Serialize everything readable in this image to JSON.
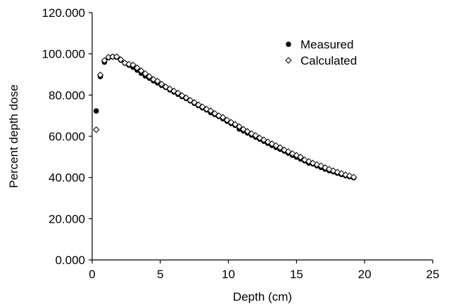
{
  "chart_data": {
    "type": "scatter",
    "xlabel": "Depth (cm)",
    "ylabel": "Percent depth dose",
    "xlim": [
      0,
      25
    ],
    "ylim": [
      0,
      120
    ],
    "xticks": [
      0,
      5,
      10,
      15,
      20,
      25
    ],
    "xtick_labels": [
      "0",
      "5",
      "10",
      "15",
      "20",
      "25"
    ],
    "yticks": [
      0,
      20,
      40,
      60,
      80,
      100,
      120
    ],
    "ytick_labels": [
      "0.000",
      "20.000",
      "40.000",
      "60.000",
      "80.000",
      "100.000",
      "120.000"
    ],
    "grid": false,
    "legend_position": "top-right",
    "series": [
      {
        "name": "Measured",
        "marker": "filled-circle",
        "color": "#000000",
        "points": [
          [
            0.3,
            72.3
          ],
          [
            0.6,
            89.0
          ],
          [
            0.9,
            96.0
          ],
          [
            1.2,
            98.2
          ],
          [
            1.5,
            98.6
          ],
          [
            1.8,
            98.4
          ],
          [
            2.1,
            97.0
          ],
          [
            2.4,
            95.5
          ],
          [
            2.7,
            94.5
          ],
          [
            3.0,
            93.5
          ],
          [
            3.3,
            92.1
          ],
          [
            3.6,
            90.6
          ],
          [
            3.9,
            89.3
          ],
          [
            4.2,
            88.2
          ],
          [
            4.5,
            86.9
          ],
          [
            4.8,
            85.9
          ],
          [
            5.1,
            84.7
          ],
          [
            5.4,
            83.7
          ],
          [
            5.7,
            82.5
          ],
          [
            6.0,
            81.5
          ],
          [
            6.3,
            80.4
          ],
          [
            6.6,
            79.3
          ],
          [
            6.9,
            78.3
          ],
          [
            7.2,
            77.2
          ],
          [
            7.5,
            76.0
          ],
          [
            7.8,
            74.9
          ],
          [
            8.1,
            73.8
          ],
          [
            8.4,
            72.8
          ],
          [
            8.7,
            71.5
          ],
          [
            9.0,
            70.6
          ],
          [
            9.3,
            69.6
          ],
          [
            9.6,
            68.5
          ],
          [
            9.9,
            67.3
          ],
          [
            10.2,
            66.2
          ],
          [
            10.5,
            65.3
          ],
          [
            10.8,
            63.5
          ],
          [
            11.1,
            62.6
          ],
          [
            11.4,
            61.6
          ],
          [
            11.7,
            60.6
          ],
          [
            12.0,
            59.6
          ],
          [
            12.3,
            58.6
          ],
          [
            12.6,
            57.6
          ],
          [
            12.9,
            56.6
          ],
          [
            13.2,
            55.6
          ],
          [
            13.5,
            54.6
          ],
          [
            13.8,
            53.7
          ],
          [
            14.1,
            52.8
          ],
          [
            14.4,
            51.8
          ],
          [
            14.7,
            50.8
          ],
          [
            15.0,
            49.9
          ],
          [
            15.3,
            49.0
          ],
          [
            15.6,
            48.1
          ],
          [
            15.9,
            47.0
          ],
          [
            16.2,
            46.6
          ],
          [
            16.5,
            45.7
          ],
          [
            16.8,
            44.9
          ],
          [
            17.1,
            44.1
          ],
          [
            17.4,
            43.3
          ],
          [
            17.7,
            42.8
          ],
          [
            18.0,
            42.1
          ],
          [
            18.3,
            41.5
          ],
          [
            18.6,
            40.9
          ],
          [
            18.9,
            40.4
          ],
          [
            19.2,
            39.9
          ]
        ]
      },
      {
        "name": "Calculated",
        "marker": "open-diamond",
        "color": "#000000",
        "points": [
          [
            0.3,
            63.2
          ],
          [
            0.6,
            89.8
          ],
          [
            0.9,
            96.8
          ],
          [
            1.2,
            98.4
          ],
          [
            1.5,
            98.6
          ],
          [
            1.8,
            98.6
          ],
          [
            2.1,
            97.2
          ],
          [
            2.4,
            95.6
          ],
          [
            2.7,
            95.0
          ],
          [
            3.0,
            94.6
          ],
          [
            3.3,
            93.2
          ],
          [
            3.6,
            91.8
          ],
          [
            3.9,
            90.4
          ],
          [
            4.2,
            89.0
          ],
          [
            4.5,
            87.6
          ],
          [
            4.8,
            86.8
          ],
          [
            5.1,
            85.3
          ],
          [
            5.4,
            84.0
          ],
          [
            5.7,
            83.0
          ],
          [
            6.0,
            82.0
          ],
          [
            6.3,
            81.0
          ],
          [
            6.6,
            79.8
          ],
          [
            6.9,
            78.7
          ],
          [
            7.2,
            77.5
          ],
          [
            7.5,
            76.4
          ],
          [
            7.8,
            75.3
          ],
          [
            8.1,
            74.3
          ],
          [
            8.4,
            73.2
          ],
          [
            8.7,
            72.4
          ],
          [
            9.0,
            71.1
          ],
          [
            9.3,
            70.0
          ],
          [
            9.6,
            69.2
          ],
          [
            9.9,
            67.9
          ],
          [
            10.2,
            66.8
          ],
          [
            10.5,
            65.8
          ],
          [
            10.8,
            64.7
          ],
          [
            11.1,
            63.4
          ],
          [
            11.4,
            62.4
          ],
          [
            11.7,
            61.3
          ],
          [
            12.0,
            60.4
          ],
          [
            12.3,
            59.2
          ],
          [
            12.6,
            58.3
          ],
          [
            12.9,
            57.3
          ],
          [
            13.2,
            56.4
          ],
          [
            13.5,
            55.5
          ],
          [
            13.8,
            54.5
          ],
          [
            14.1,
            53.4
          ],
          [
            14.4,
            52.6
          ],
          [
            14.7,
            51.6
          ],
          [
            15.0,
            50.8
          ],
          [
            15.3,
            49.9
          ],
          [
            15.6,
            48.6
          ],
          [
            15.9,
            47.8
          ],
          [
            16.2,
            47.0
          ],
          [
            16.5,
            46.3
          ],
          [
            16.8,
            45.7
          ],
          [
            17.1,
            44.8
          ],
          [
            17.4,
            44.0
          ],
          [
            17.7,
            43.3
          ],
          [
            18.0,
            42.6
          ],
          [
            18.3,
            42.0
          ],
          [
            18.6,
            41.3
          ],
          [
            18.9,
            40.8
          ],
          [
            19.2,
            40.2
          ]
        ]
      }
    ]
  }
}
